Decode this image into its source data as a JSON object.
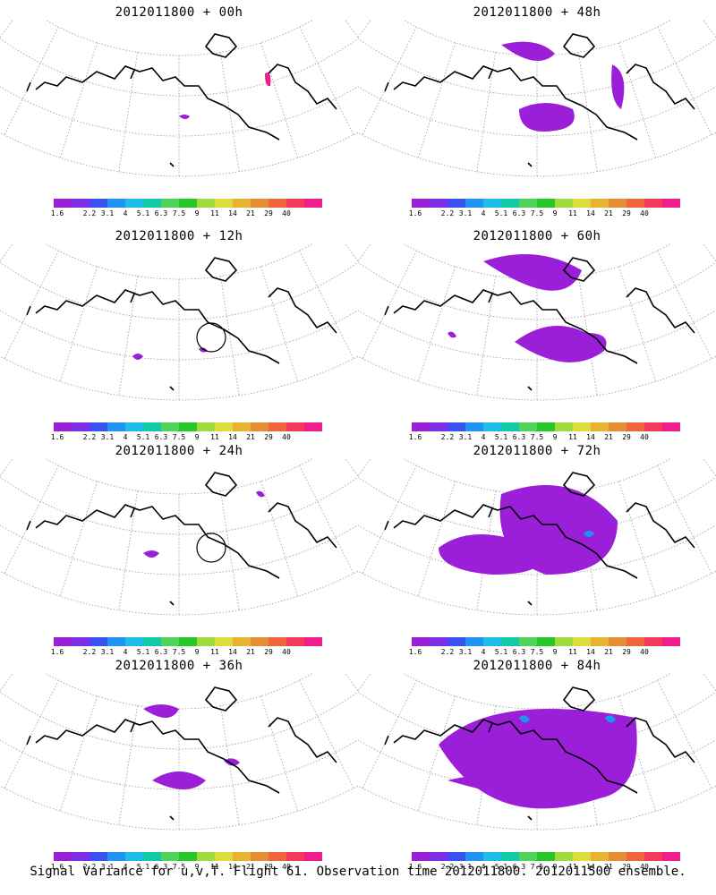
{
  "panels": [
    {
      "title": "2012011800 + 00h"
    },
    {
      "title": "2012011800 + 48h"
    },
    {
      "title": "2012011800 + 12h"
    },
    {
      "title": "2012011800 + 60h"
    },
    {
      "title": "2012011800 + 24h"
    },
    {
      "title": "2012011800 + 72h"
    },
    {
      "title": "2012011800 + 36h"
    },
    {
      "title": "2012011800 + 84h"
    }
  ],
  "colorbar": {
    "labels": [
      "1.6",
      "2.2",
      "3.1",
      "4",
      "5.1",
      "6.3",
      "7.5",
      "9",
      "11",
      "14",
      "21",
      "29",
      "40"
    ],
    "colors": [
      "#9b1fd8",
      "#7d2fe6",
      "#3c50f0",
      "#1e96f0",
      "#1ebce6",
      "#14c8aa",
      "#50d25a",
      "#28c828",
      "#a0dc3c",
      "#dcdc3c",
      "#e6b432",
      "#e68c32",
      "#f0643c",
      "#f03c5a",
      "#f01e8c"
    ]
  },
  "caption": "Signal Variance for u,v,T. Flight 61. Observation time 2012011800. 2012011500 ensemble."
}
